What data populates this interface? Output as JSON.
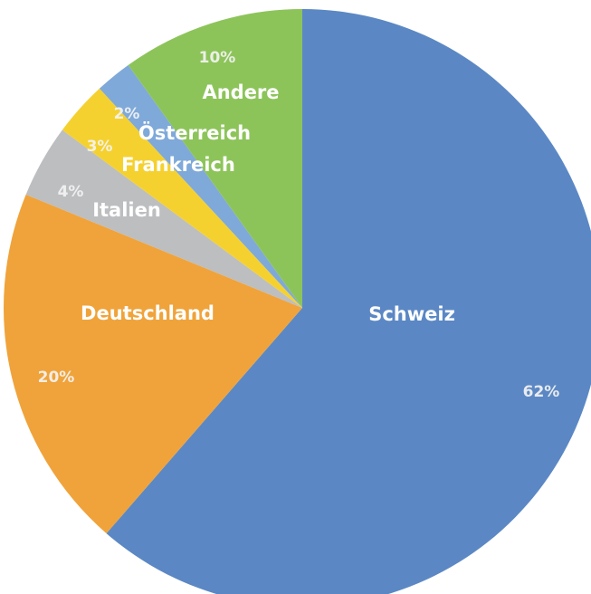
{
  "chart_data": {
    "type": "pie",
    "categories": [
      "Schweiz",
      "Deutschland",
      "Italien",
      "Frankreich",
      "Österreich",
      "Andere"
    ],
    "values": [
      62,
      20,
      4,
      3,
      2,
      10
    ],
    "value_labels": [
      "62%",
      "20%",
      "4%",
      "3%",
      "2%",
      "10%"
    ],
    "colors": [
      "#5b88c4",
      "#f0a33a",
      "#bcbec0",
      "#f5d130",
      "#7fa9d9",
      "#8dc45a"
    ]
  }
}
